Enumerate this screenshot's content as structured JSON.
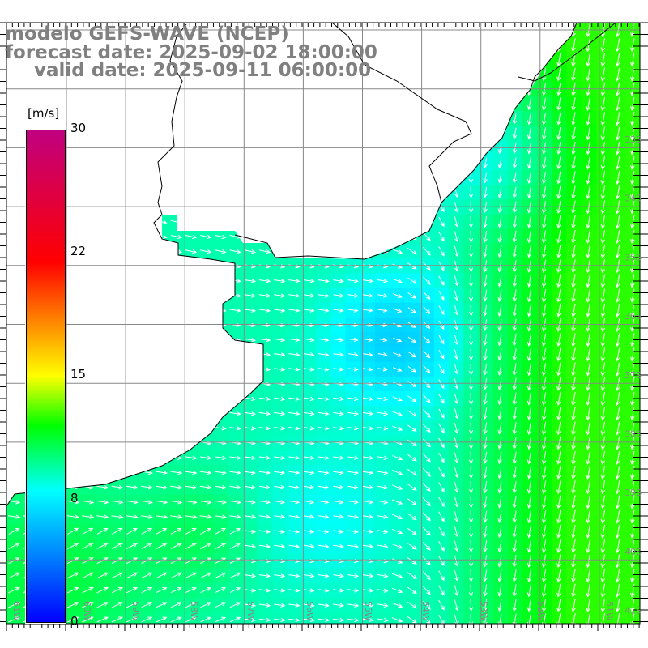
{
  "title": {
    "model": "modelo GEFS-WAVE (NCEP)",
    "forecast": "forecast date: 2025-09-02 18:00:00",
    "valid": "valid date: 2025-09-11 06:00:00"
  },
  "colorbar": {
    "units": "[m/s]",
    "ticks": [
      "30",
      "22",
      "15",
      "8",
      "0"
    ],
    "min": 0,
    "max": 30,
    "stops": [
      {
        "v": 0,
        "c": "#0000ff"
      },
      {
        "v": 4,
        "c": "#0080ff"
      },
      {
        "v": 8,
        "c": "#00ffff"
      },
      {
        "v": 12,
        "c": "#00ff00"
      },
      {
        "v": 15,
        "c": "#ffff00"
      },
      {
        "v": 22,
        "c": "#ff0000"
      },
      {
        "v": 30,
        "c": "#c00080"
      }
    ]
  },
  "axes": {
    "lon_labels": [
      "61W",
      "60W",
      "59W",
      "58W",
      "57W",
      "56W",
      "55W",
      "54W",
      "53W",
      "52W",
      "51W"
    ],
    "lat_labels": [
      "33S",
      "34S",
      "35S",
      "36S",
      "37S",
      "38S",
      "39S",
      "40S",
      "41S"
    ]
  },
  "colors": {
    "land": "#ffffff",
    "coast": "#000000",
    "grid": "#888888",
    "arrow": "#ffffff",
    "title": "#808080"
  }
}
